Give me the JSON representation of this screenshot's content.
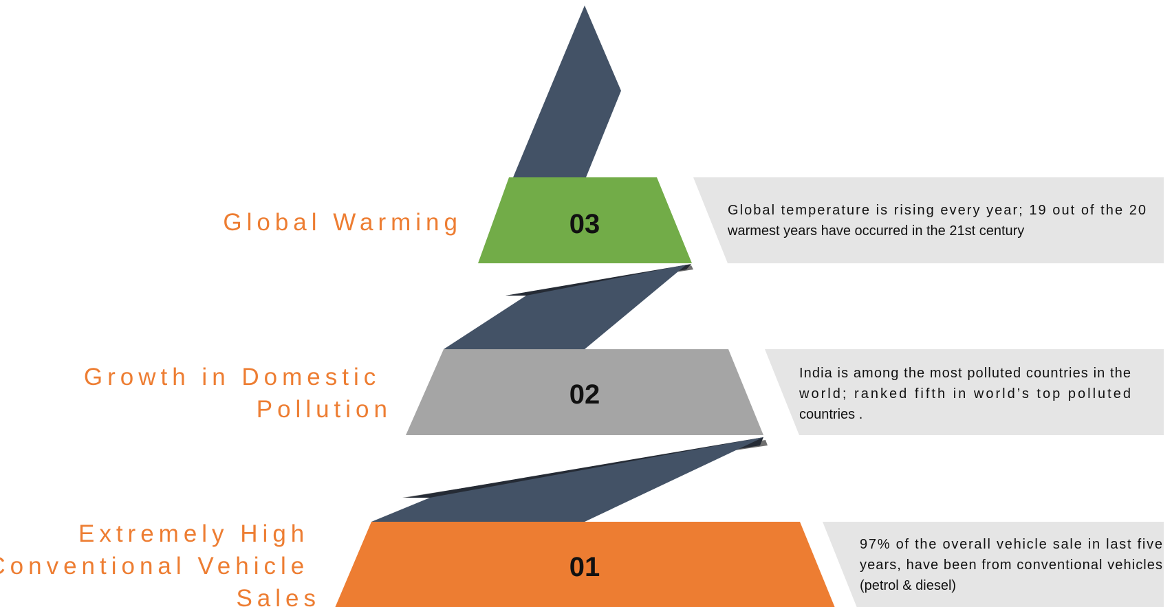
{
  "colors": {
    "ribbon": "#435266",
    "ribbon_shadow": "#252b35",
    "fold_shadow": "#6f6f6f",
    "band_03": "#72ac48",
    "band_02": "#a5a5a5",
    "band_01": "#ed7d32",
    "description_box": "#e5e5e5",
    "title_text": "#ed7d32",
    "number_text": "#111111",
    "description_text": "#111111"
  },
  "levels": [
    {
      "number": "03",
      "title_lines": [
        "Global Warming"
      ],
      "description_lines": [
        "Global temperature is rising every year; 19 out of the 20",
        "warmest years have occurred in the 21st century"
      ]
    },
    {
      "number": "02",
      "title_lines": [
        "Growth in Domestic",
        "Pollution"
      ],
      "description_lines": [
        "India is among the most polluted countries in the",
        "world; ranked fifth in world’s top polluted",
        "countries ."
      ]
    },
    {
      "number": "01",
      "title_lines": [
        "Extremely High",
        "Conventional Vehicle",
        "Sales"
      ],
      "description_lines": [
        "97% of the overall vehicle sale in last five",
        "years, have been from conventional vehicles",
        "(petrol & diesel)"
      ]
    }
  ]
}
